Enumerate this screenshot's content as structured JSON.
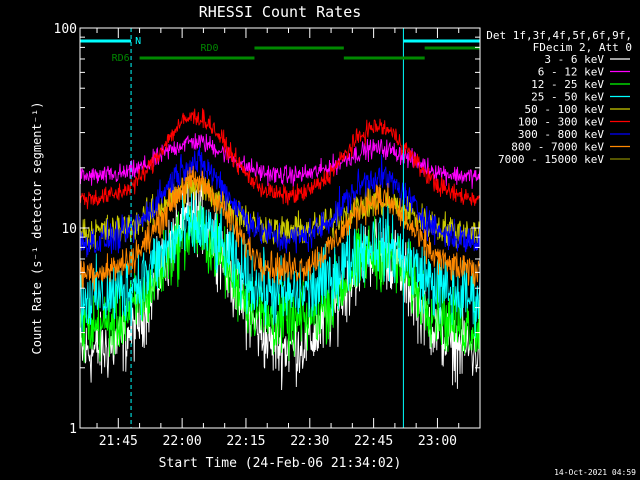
{
  "chart_data": {
    "type": "line",
    "title": "RHESSI Count Rates",
    "xlabel": "Start Time (24-Feb-06 21:34:02)",
    "ylabel": "Count Rate (s⁻¹ detector segment⁻¹)",
    "yscale": "log",
    "ylim": [
      1,
      100
    ],
    "xlim": [
      "21:36",
      "23:10"
    ],
    "x_tick_labels": [
      "21:45",
      "22:00",
      "22:15",
      "22:30",
      "22:45",
      "23:00"
    ],
    "y_tick_labels": [
      "1",
      "10",
      "100"
    ],
    "grid": false,
    "legend_placement": "right",
    "legend_header": [
      "Det 1f,3f,4f,5f,6f,9f,",
      "FDecim 2, Att 0"
    ],
    "footer_timestamp": "14-Oct-2021 04:59",
    "series": [
      {
        "name": "3 - 6 keV",
        "color": "#ffffff",
        "baseline": 2.4,
        "peak1": 11.5,
        "peak2": 7.8
      },
      {
        "name": "6 - 12 keV",
        "color": "#ff00ff",
        "baseline": 18.0,
        "peak1": 27.0,
        "peak2": 25.0
      },
      {
        "name": "12 - 25 keV",
        "color": "#00ff00",
        "baseline": 3.2,
        "peak1": 9.5,
        "peak2": 7.5
      },
      {
        "name": "25 - 50 keV",
        "color": "#00ffff",
        "baseline": 4.5,
        "peak1": 10.0,
        "peak2": 8.5
      },
      {
        "name": "50 - 100 keV",
        "color": "#cccc00",
        "baseline": 9.5,
        "peak1": 16.0,
        "peak2": 13.5
      },
      {
        "name": "100 - 300 keV",
        "color": "#ff0000",
        "baseline": 14.0,
        "peak1": 36.0,
        "peak2": 32.0
      },
      {
        "name": "300 - 800 keV",
        "color": "#0000ff",
        "baseline": 8.5,
        "peak1": 21.0,
        "peak2": 18.0
      },
      {
        "name": "800 - 7000 keV",
        "color": "#ff8800",
        "baseline": 6.0,
        "peak1": 17.0,
        "peak2": 14.0
      },
      {
        "name": "7000 - 15000 keV",
        "color": "#888800",
        "baseline": 0,
        "peak1": 0,
        "peak2": 0
      }
    ],
    "flags": [
      {
        "label": "N",
        "color": "#00ffff",
        "segments": [
          [
            "21:36",
            "21:48"
          ],
          [
            "22:52",
            "23:10"
          ]
        ]
      },
      {
        "label": "RD0",
        "color": "#008800",
        "segments": [
          [
            "22:17",
            "22:38"
          ],
          [
            "22:57",
            "23:10"
          ]
        ]
      },
      {
        "label": "RD6",
        "color": "#008800",
        "segments": [
          [
            "21:50",
            "22:17"
          ],
          [
            "22:38",
            "22:57"
          ]
        ]
      }
    ],
    "vertical_markers": [
      {
        "color": "#00ffff",
        "style": "solid",
        "times": [
          "21:36",
          "22:52"
        ]
      },
      {
        "color": "#00ffff",
        "style": "dashed",
        "times": [
          "21:48",
          "23:10"
        ]
      }
    ],
    "peaks": [
      "22:03",
      "22:46"
    ]
  }
}
